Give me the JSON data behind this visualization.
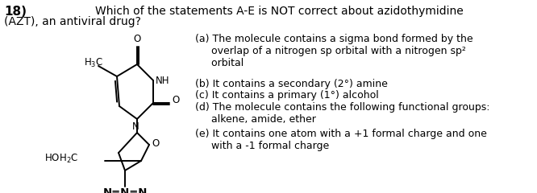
{
  "question_number": "18)",
  "question_line1": "Which of the statements A-E is NOT correct about azidothymidine",
  "question_line2": "(AZT), an antiviral drug?",
  "options": [
    "(a) The molecule contains a sigma bond formed by the\n     overlap of a nitrogen sp orbital with a nitrogen sp²\n     orbital",
    "(b) It contains a secondary (2°) amine",
    "(c) It contains a primary (1°) alcohol",
    "(d) The molecule contains the following functional groups:\n     alkene, amide, ether",
    "(e) It contains one atom with a +1 formal charge and one\n     with a -1 formal charge"
  ],
  "bg_color": "#ffffff",
  "text_color": "#000000",
  "font_size": 9.0,
  "question_font_size": 10.0,
  "number_font_size": 11.0,
  "struct_lw": 1.4,
  "struct_color": "#000000"
}
